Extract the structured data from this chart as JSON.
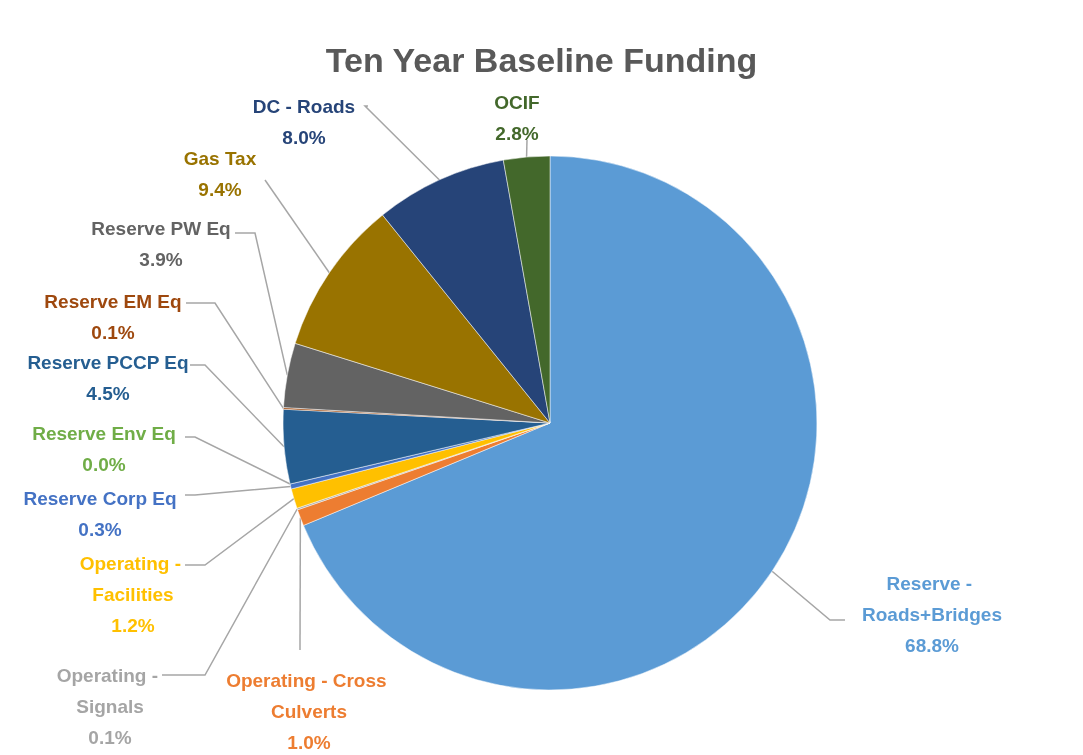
{
  "chart_data": {
    "type": "pie",
    "title": "Ten Year Baseline Funding",
    "categories": [
      "Reserve - Roads+Bridges",
      "Operating - Cross Culverts",
      "Operating - Signals",
      "Operating - Facilities",
      "Reserve Corp Eq",
      "Reserve Env Eq",
      "Reserve PCCP Eq",
      "Reserve EM Eq",
      "Reserve PW Eq",
      "Gas Tax",
      "DC - Roads",
      "OCIF"
    ],
    "values": [
      68.8,
      1.0,
      0.1,
      1.2,
      0.3,
      0.0,
      4.5,
      0.1,
      3.9,
      9.4,
      8.0,
      2.8
    ],
    "value_labels": [
      "68.8%",
      "1.0%",
      "0.1%",
      "1.2%",
      "0.3%",
      "0.0%",
      "4.5%",
      "0.1%",
      "3.9%",
      "9.4%",
      "8.0%",
      "2.8%"
    ],
    "colors": [
      "#5b9bd5",
      "#ed7d31",
      "#a5a5a5",
      "#ffc000",
      "#4472c4",
      "#70ad47",
      "#255e91",
      "#9e480e",
      "#636363",
      "#997300",
      "#264478",
      "#43682b"
    ],
    "legend": false
  }
}
